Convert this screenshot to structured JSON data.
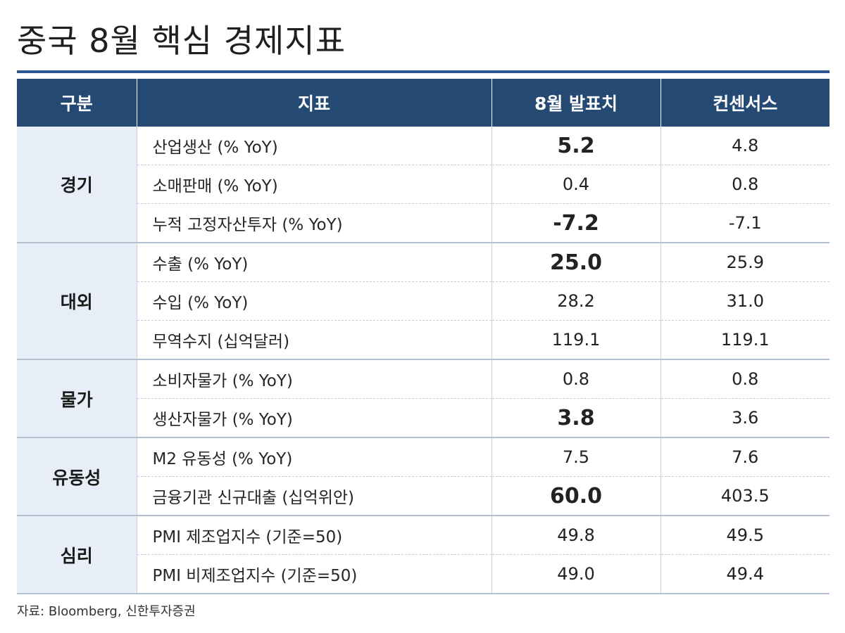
{
  "title": "중국 8월 핵심 경제지표",
  "headers": {
    "category": "구분",
    "indicator": "지표",
    "actual": "8월 발표치",
    "consensus": "컨센서스"
  },
  "groups": [
    {
      "category": "경기",
      "rows": [
        {
          "indicator": "산업생산 (% YoY)",
          "actual": "5.2",
          "consensus": "4.8",
          "emphasized": true
        },
        {
          "indicator": "소매판매 (% YoY)",
          "actual": "0.4",
          "consensus": "0.8",
          "emphasized": false
        },
        {
          "indicator": "누적 고정자산투자 (% YoY)",
          "actual": "-7.2",
          "consensus": "-7.1",
          "emphasized": true
        }
      ]
    },
    {
      "category": "대외",
      "rows": [
        {
          "indicator": "수출 (% YoY)",
          "actual": "25.0",
          "consensus": "25.9",
          "emphasized": true
        },
        {
          "indicator": "수입 (% YoY)",
          "actual": "28.2",
          "consensus": "31.0",
          "emphasized": false
        },
        {
          "indicator": "무역수지 (십억달러)",
          "actual": "119.1",
          "consensus": "119.1",
          "emphasized": false
        }
      ]
    },
    {
      "category": "물가",
      "rows": [
        {
          "indicator": "소비자물가 (% YoY)",
          "actual": "0.8",
          "consensus": "0.8",
          "emphasized": false
        },
        {
          "indicator": "생산자물가 (% YoY)",
          "actual": "3.8",
          "consensus": "3.6",
          "emphasized": true
        }
      ]
    },
    {
      "category": "유동성",
      "rows": [
        {
          "indicator": "M2 유동성 (% YoY)",
          "actual": "7.5",
          "consensus": "7.6",
          "emphasized": false
        },
        {
          "indicator": "금융기관 신규대출 (십억위안)",
          "actual": "60.0",
          "consensus": "403.5",
          "emphasized": true
        }
      ]
    },
    {
      "category": "심리",
      "rows": [
        {
          "indicator": "PMI 제조업지수 (기준=50)",
          "actual": "49.8",
          "consensus": "49.5",
          "emphasized": false
        },
        {
          "indicator": "PMI 비제조업지수 (기준=50)",
          "actual": "49.0",
          "consensus": "49.4",
          "emphasized": false
        }
      ]
    }
  ],
  "source": "자료: Bloomberg, 신한투자증권",
  "colors": {
    "header_bg": "#244a74",
    "title_rule": "#2d5690",
    "category_bg": "#e7eef7"
  }
}
